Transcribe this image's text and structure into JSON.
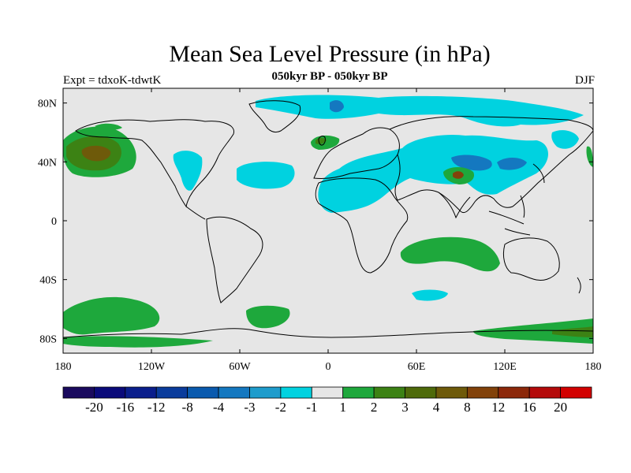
{
  "title": "Mean Sea Level Pressure (in hPa)",
  "left_label": "Expt = tdxoK-tdwtK",
  "subtitle": "050kyr BP - 050kyr BP",
  "season": "DJF",
  "map": {
    "projection": "cylindrical equidistant",
    "lon_range": [
      -180,
      180
    ],
    "lat_range": [
      -90,
      90
    ],
    "background_color": "#e6e6e6",
    "coastline_color": "#000000",
    "x_ticks": [
      {
        "lon": -180,
        "label": "180"
      },
      {
        "lon": -120,
        "label": "120W"
      },
      {
        "lon": -60,
        "label": "60W"
      },
      {
        "lon": 0,
        "label": "0"
      },
      {
        "lon": 60,
        "label": "60E"
      },
      {
        "lon": 120,
        "label": "120E"
      },
      {
        "lon": 180,
        "label": "180"
      }
    ],
    "y_ticks": [
      {
        "lat": 80,
        "label": "80N"
      },
      {
        "lat": 40,
        "label": "40N"
      },
      {
        "lat": 0,
        "label": "0"
      },
      {
        "lat": -40,
        "label": "40S"
      },
      {
        "lat": -80,
        "label": "80S"
      }
    ]
  },
  "colorbar": {
    "colors": [
      "#1a0a5e",
      "#0a0a7a",
      "#0a1e8c",
      "#0a3c9c",
      "#0a5aae",
      "#1478c0",
      "#1e9ccc",
      "#00d2e0",
      "#e6e6e6",
      "#1ea83c",
      "#3c8214",
      "#4e6a0a",
      "#6e5a0a",
      "#82420a",
      "#8c280a",
      "#b40a0a",
      "#d20000"
    ],
    "labels": [
      "-20",
      "-16",
      "-12",
      "-8",
      "-4",
      "-3",
      "-2",
      "-1",
      "1",
      "2",
      "3",
      "4",
      "8",
      "12",
      "16",
      "20"
    ]
  }
}
